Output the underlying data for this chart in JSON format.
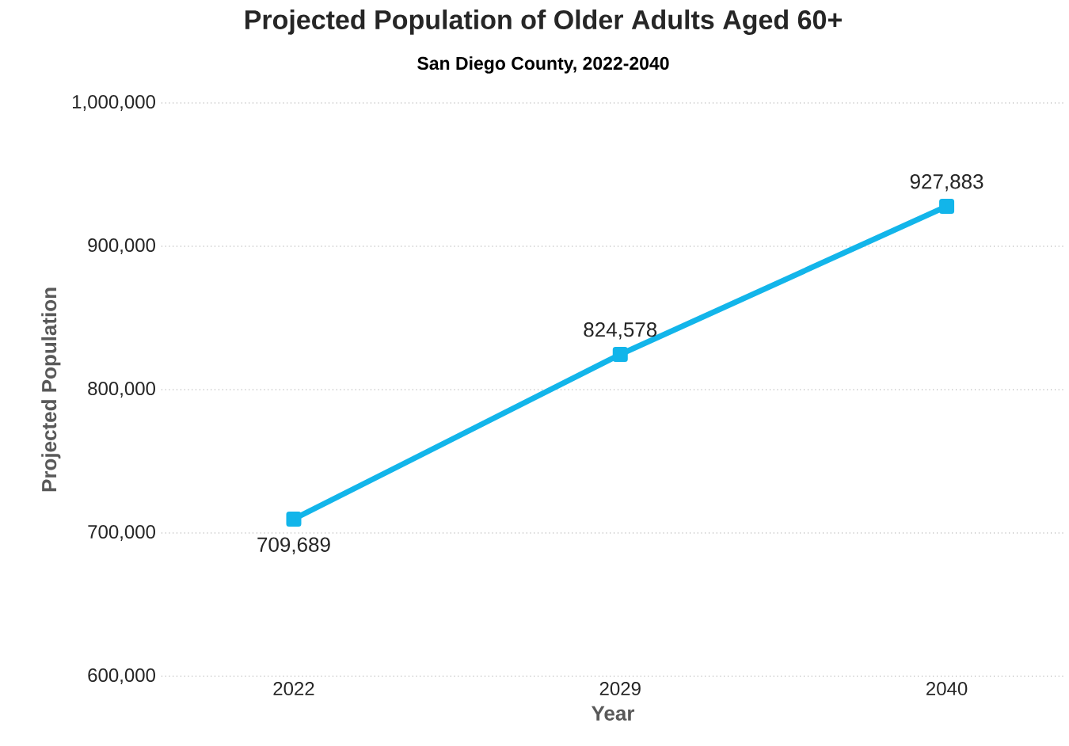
{
  "chart_data": {
    "type": "line",
    "title": "Projected Population of Older Adults Aged 60+",
    "subtitle": "San Diego County, 2022-2040",
    "xlabel": "Year",
    "ylabel": "Projected Population",
    "categories": [
      "2022",
      "2029",
      "2040"
    ],
    "series": [
      {
        "color": "#12b5ea",
        "values": [
          709689,
          824578,
          927883
        ],
        "value_labels": [
          "709,689",
          "824,578",
          "927,883"
        ]
      }
    ],
    "ylim": [
      600000,
      1000000
    ],
    "yticks": [
      {
        "value": 600000,
        "label": "600,000"
      },
      {
        "value": 700000,
        "label": "700,000"
      },
      {
        "value": 800000,
        "label": "800,000"
      },
      {
        "value": 900000,
        "label": "900,000"
      },
      {
        "value": 1000000,
        "label": "1,000,000"
      }
    ],
    "grid": "y",
    "marker": "square",
    "line_style": "solid"
  }
}
